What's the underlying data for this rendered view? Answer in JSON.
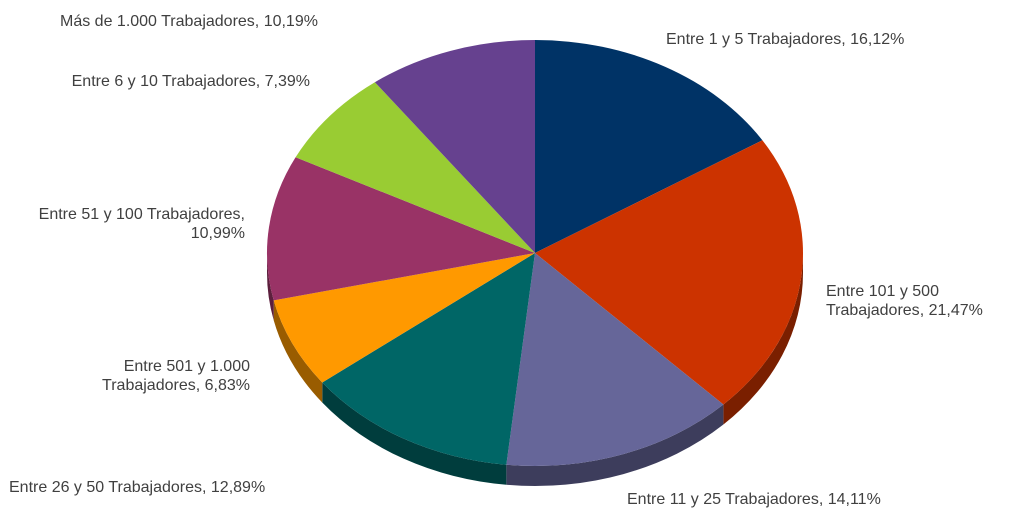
{
  "chart_data": {
    "type": "pie",
    "categories": [
      "Entre 1 y 5 Trabajadores",
      "Entre 101 y 500 Trabajadores",
      "Entre 11 y 25 Trabajadores",
      "Entre 26 y 50 Trabajadores",
      "Entre 501 y 1.000 Trabajadores",
      "Entre 51 y 100 Trabajadores",
      "Entre 6 y 10 Trabajadores",
      "Más de 1.000 Trabajadores"
    ],
    "values": [
      16.12,
      21.47,
      14.11,
      12.89,
      6.83,
      10.99,
      7.39,
      10.19
    ],
    "value_labels": [
      "16,12%",
      "21,47%",
      "14,11%",
      "12,89%",
      "6,83%",
      "10,99%",
      "7,39%",
      "10,19%"
    ],
    "colors": [
      "#003366",
      "#cc3300",
      "#666699",
      "#006666",
      "#ff9900",
      "#993366",
      "#99cc33",
      "#66418f"
    ]
  }
}
